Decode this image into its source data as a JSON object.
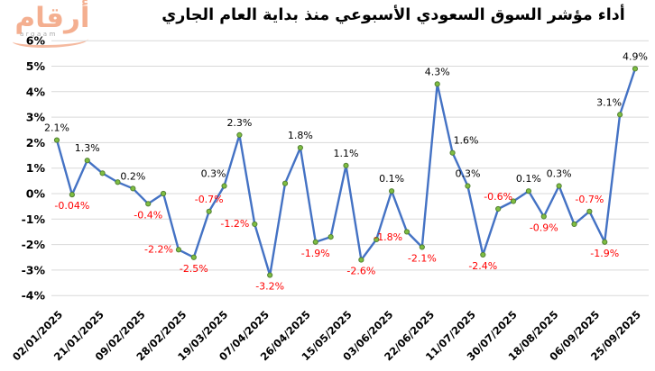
{
  "logo": {
    "arabic": "أرقام",
    "latin": "argaam"
  },
  "chart_data": {
    "type": "line",
    "title": "أداء مؤشر السوق السعودي الأسبوعي منذ بداية العام الجاري",
    "ylim": [
      -4,
      6
    ],
    "grid": true,
    "legend": false,
    "y_tick_labels": [
      "6%",
      "5%",
      "4%",
      "3%",
      "2%",
      "1%",
      "0%",
      "-1%",
      "-2%",
      "-3%",
      "-4%"
    ],
    "x_tick_labels": [
      "02/01/2025",
      "21/01/2025",
      "09/02/2025",
      "28/02/2025",
      "19/03/2025",
      "07/04/2025",
      "26/04/2025",
      "15/05/2025",
      "03/06/2025",
      "22/06/2025",
      "11/07/2025",
      "30/07/2025",
      "18/08/2025",
      "06/09/2025",
      "25/09/2025"
    ],
    "line_color": "#4472C4",
    "marker_fill": "#7FBE41",
    "marker_stroke": "#538135",
    "gridline_color": "#D9D9D9",
    "positive_label_color": "#000000",
    "negative_label_color": "#FF0000",
    "points": [
      {
        "value": 2.1,
        "label": "2.1%",
        "pos": "above"
      },
      {
        "value": -0.04,
        "label": "-0.04%",
        "pos": "below"
      },
      {
        "value": 1.3,
        "label": "1.3%",
        "pos": "above"
      },
      {
        "value": 0.8,
        "label": null
      },
      {
        "value": 0.45,
        "label": null
      },
      {
        "value": 0.2,
        "label": "0.2%",
        "pos": "above"
      },
      {
        "value": -0.4,
        "label": "-0.4%",
        "pos": "below"
      },
      {
        "value": 0.0,
        "label": null
      },
      {
        "value": -2.2,
        "label": "-2.2%",
        "pos": "left"
      },
      {
        "value": -2.5,
        "label": "-2.5%",
        "pos": "below"
      },
      {
        "value": -0.7,
        "label": "-0.7%",
        "pos": "above"
      },
      {
        "value": 0.3,
        "label": "0.3%",
        "pos": "above-left"
      },
      {
        "value": 2.3,
        "label": "2.3%",
        "pos": "above"
      },
      {
        "value": -1.2,
        "label": "-1.2%",
        "pos": "left"
      },
      {
        "value": -3.2,
        "label": "-3.2%",
        "pos": "below"
      },
      {
        "value": 0.4,
        "label": null
      },
      {
        "value": 1.8,
        "label": "1.8%",
        "pos": "above"
      },
      {
        "value": -1.9,
        "label": "-1.9%",
        "pos": "below"
      },
      {
        "value": -1.7,
        "label": null
      },
      {
        "value": 1.1,
        "label": "1.1%",
        "pos": "above"
      },
      {
        "value": -2.6,
        "label": "-2.6%",
        "pos": "below"
      },
      {
        "value": -1.8,
        "label": "-1.8%",
        "pos": "right"
      },
      {
        "value": 0.1,
        "label": "0.1%",
        "pos": "above"
      },
      {
        "value": -1.5,
        "label": null
      },
      {
        "value": -2.1,
        "label": "-2.1%",
        "pos": "below"
      },
      {
        "value": 4.3,
        "label": "4.3%",
        "pos": "above"
      },
      {
        "value": 1.6,
        "label": "1.6%",
        "pos": "above-right"
      },
      {
        "value": 0.3,
        "label": "0.3%",
        "pos": "above"
      },
      {
        "value": -2.4,
        "label": "-2.4%",
        "pos": "below"
      },
      {
        "value": -0.6,
        "label": "-0.6%",
        "pos": "above"
      },
      {
        "value": -0.3,
        "label": null
      },
      {
        "value": 0.1,
        "label": "0.1%",
        "pos": "above"
      },
      {
        "value": -0.9,
        "label": "-0.9%",
        "pos": "below"
      },
      {
        "value": 0.3,
        "label": "0.3%",
        "pos": "above"
      },
      {
        "value": -1.2,
        "label": null
      },
      {
        "value": -0.7,
        "label": "-0.7%",
        "pos": "above"
      },
      {
        "value": -1.9,
        "label": "-1.9%",
        "pos": "below"
      },
      {
        "value": 3.1,
        "label": "3.1%",
        "pos": "above-left"
      },
      {
        "value": 4.9,
        "label": "4.9%",
        "pos": "above"
      }
    ]
  }
}
